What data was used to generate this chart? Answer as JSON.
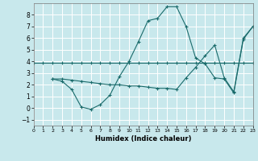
{
  "xlabel": "Humidex (Indice chaleur)",
  "xlim": [
    0,
    23
  ],
  "ylim": [
    -1.5,
    9.0
  ],
  "yticks": [
    -1,
    0,
    1,
    2,
    3,
    4,
    5,
    6,
    7,
    8
  ],
  "xticks": [
    0,
    1,
    2,
    3,
    4,
    5,
    6,
    7,
    8,
    9,
    10,
    11,
    12,
    13,
    14,
    15,
    16,
    17,
    18,
    19,
    20,
    21,
    22,
    23
  ],
  "bg_color": "#c8e8ec",
  "line_color": "#1a6b6b",
  "grid_color": "#ffffff",
  "line1_x": [
    0,
    1,
    2,
    3,
    4,
    5,
    6,
    7,
    8,
    9,
    10,
    11,
    12,
    13,
    14,
    15,
    16,
    17,
    18,
    19,
    20,
    21,
    22,
    23
  ],
  "line1_y": [
    3.9,
    3.9,
    3.9,
    3.9,
    3.9,
    3.9,
    3.9,
    3.9,
    3.9,
    3.9,
    3.9,
    3.9,
    3.9,
    3.9,
    3.9,
    3.9,
    3.9,
    3.9,
    3.9,
    3.9,
    3.9,
    3.9,
    3.9,
    3.9
  ],
  "line2_x": [
    2,
    3,
    4,
    5,
    6,
    7,
    8,
    9,
    10,
    11,
    12,
    13,
    14,
    15,
    16,
    17,
    18,
    19,
    20,
    21,
    22,
    23
  ],
  "line2_y": [
    2.5,
    2.3,
    1.6,
    0.1,
    -0.1,
    0.3,
    1.1,
    2.7,
    4.0,
    5.7,
    7.5,
    7.7,
    8.7,
    8.7,
    7.0,
    4.3,
    3.8,
    2.6,
    2.5,
    1.3,
    5.9,
    7.0
  ],
  "line3_x": [
    2,
    3,
    4,
    5,
    6,
    7,
    8,
    9,
    10,
    11,
    12,
    13,
    14,
    15,
    16,
    17,
    18,
    19,
    20,
    21,
    22,
    23
  ],
  "line3_y": [
    2.5,
    2.5,
    2.4,
    2.3,
    2.2,
    2.1,
    2.0,
    2.0,
    1.9,
    1.9,
    1.8,
    1.7,
    1.7,
    1.6,
    2.6,
    3.5,
    4.5,
    5.4,
    2.6,
    1.4,
    6.0,
    7.0
  ]
}
